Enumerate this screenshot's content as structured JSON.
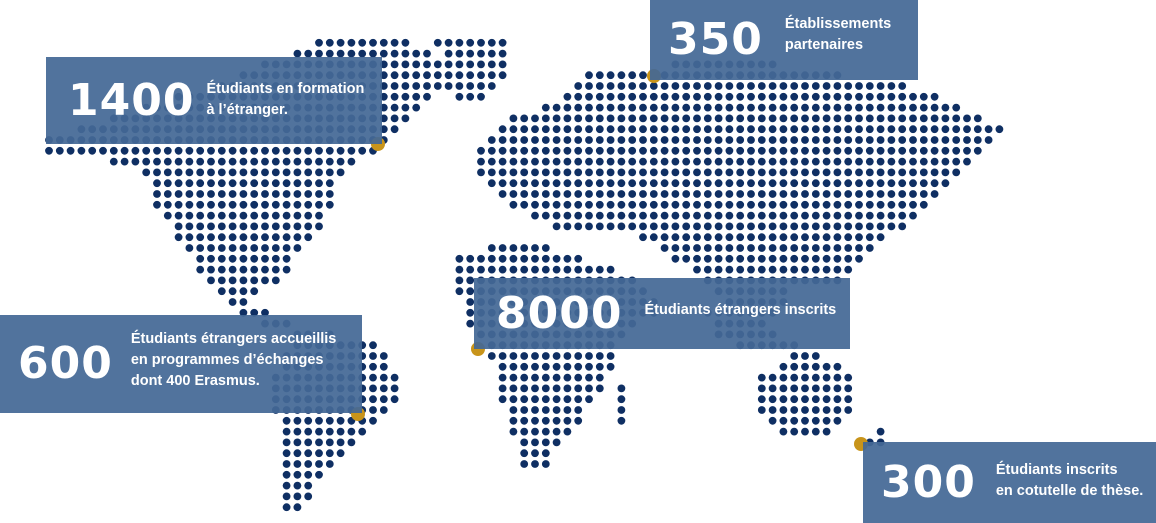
{
  "colors": {
    "dots": "#0f2f63",
    "panel": "#446896",
    "marker": "#c8941a",
    "text": "#ffffff"
  },
  "stats": [
    {
      "id": "1400",
      "number": "1400",
      "lines": [
        "Étudiants en formation",
        "à l’étranger."
      ]
    },
    {
      "id": "350",
      "number": "350",
      "lines": [
        "Établissements",
        "partenaires"
      ]
    },
    {
      "id": "8000",
      "number": "8000",
      "lines": [
        "Étudiants étrangers inscrits"
      ]
    },
    {
      "id": "600",
      "number": "600",
      "lines": [
        "Étudiants étrangers accueillis",
        "en programmes d’échanges",
        "dont 400 Erasmus."
      ]
    },
    {
      "id": "300",
      "number": "300",
      "lines": [
        "Étudiants inscrits",
        "en cotutelle de thèse."
      ]
    }
  ]
}
